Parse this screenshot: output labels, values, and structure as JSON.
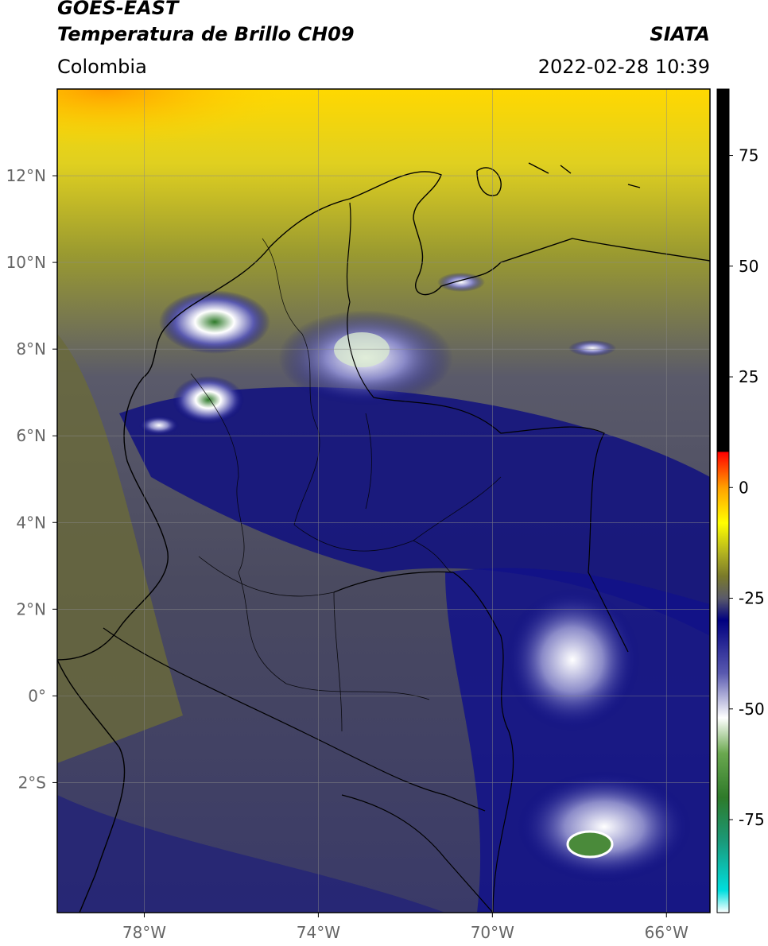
{
  "header": {
    "satellite": "GOES-EAST",
    "product": "Temperatura de Brillo CH09",
    "region": "Colombia",
    "source": "SIATA",
    "datetime": "2022-02-28 10:39"
  },
  "map": {
    "lon_range": [
      -80,
      -65
    ],
    "lat_range": [
      -5,
      14
    ],
    "lon_ticks": [
      {
        "value": -78,
        "label": "78°W"
      },
      {
        "value": -74,
        "label": "74°W"
      },
      {
        "value": -70,
        "label": "70°W"
      },
      {
        "value": -66,
        "label": "66°W"
      }
    ],
    "lat_ticks": [
      {
        "value": 12,
        "label": "12°N"
      },
      {
        "value": 10,
        "label": "10°N"
      },
      {
        "value": 8,
        "label": "8°N"
      },
      {
        "value": 6,
        "label": "6°N"
      },
      {
        "value": 4,
        "label": "4°N"
      },
      {
        "value": 2,
        "label": "2°N"
      },
      {
        "value": 0,
        "label": "0°"
      },
      {
        "value": -2,
        "label": "2°S"
      }
    ],
    "grid": true
  },
  "colorbar": {
    "range": [
      -96,
      90
    ],
    "ticks": [
      {
        "value": 75,
        "label": "75"
      },
      {
        "value": 50,
        "label": "50"
      },
      {
        "value": 25,
        "label": "25"
      },
      {
        "value": 0,
        "label": "0"
      },
      {
        "value": -25,
        "label": "-25"
      },
      {
        "value": -50,
        "label": "-50"
      },
      {
        "value": -75,
        "label": "-75"
      }
    ],
    "stops": [
      {
        "value": -96,
        "color": "#ffffff"
      },
      {
        "value": -91,
        "color": "#00dede"
      },
      {
        "value": -80,
        "color": "#1a9a7a"
      },
      {
        "value": -70,
        "color": "#2e7a2a"
      },
      {
        "value": -60,
        "color": "#6aa84f"
      },
      {
        "value": -52,
        "color": "#ffffff"
      },
      {
        "value": -42,
        "color": "#5a5ab0"
      },
      {
        "value": -30,
        "color": "#000080"
      },
      {
        "value": -25,
        "color": "#5a5a6a"
      },
      {
        "value": -20,
        "color": "#7a7a2a"
      },
      {
        "value": -15,
        "color": "#b0b020"
      },
      {
        "value": -8,
        "color": "#ffff00"
      },
      {
        "value": 0,
        "color": "#ffa000"
      },
      {
        "value": 8,
        "color": "#ff0000"
      },
      {
        "value": 8.1,
        "color": "#000000"
      },
      {
        "value": 90,
        "color": "#000000"
      }
    ]
  }
}
